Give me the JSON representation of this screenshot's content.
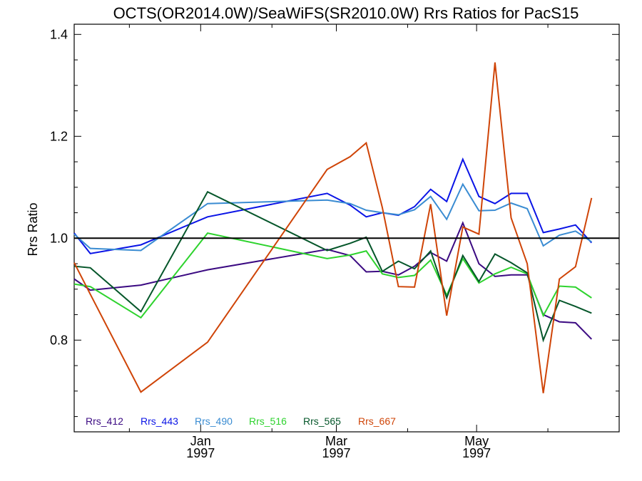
{
  "chart_data": {
    "type": "line",
    "title": "OCTS(OR2014.0W)/SeaWiFS(SR2010.0W)  Rrs Ratios for PacS15",
    "ylabel": "Rrs Ratio",
    "xlabel": "",
    "ylim": [
      0.62,
      1.42
    ],
    "xlim": [
      "1996-11-07",
      "1997-07-02"
    ],
    "reference_line": 1.0,
    "yticks": [
      "0.8",
      "1.0",
      "1.2",
      "1.4"
    ],
    "xticks": [
      {
        "x": "1997-01-01",
        "month": "Jan",
        "year": "1997"
      },
      {
        "x": "1997-03-01",
        "month": "Mar",
        "year": "1997"
      },
      {
        "x": "1997-05-01",
        "month": "May",
        "year": "1997"
      }
    ],
    "grid": false,
    "legend_position": "bottom-left",
    "x": [
      "1996-11-07",
      "1996-11-14",
      "1996-12-06",
      "1997-01-04",
      "1997-02-25",
      "1997-03-07",
      "1997-03-14",
      "1997-03-21",
      "1997-03-28",
      "1997-04-04",
      "1997-04-11",
      "1997-04-18",
      "1997-04-25",
      "1997-05-02",
      "1997-05-09",
      "1997-05-16",
      "1997-05-23",
      "1997-05-30",
      "1997-06-06",
      "1997-06-13",
      "1997-06-20",
      "1997-06-27",
      "1997-07-02"
    ],
    "series": [
      {
        "name": "Rrs_412",
        "color": "#3b0a82",
        "values": [
          0.92,
          0.898,
          0.908,
          0.938,
          0.978,
          0.966,
          0.934,
          0.935,
          0.928,
          0.945,
          0.972,
          0.955,
          1.03,
          0.95,
          0.925,
          0.928,
          0.928,
          0.85,
          0.836,
          0.834,
          0.802,
          null,
          null
        ]
      },
      {
        "name": "Rrs_443",
        "color": "#0a14e6",
        "values": [
          1.01,
          0.97,
          0.987,
          1.042,
          1.088,
          1.065,
          1.042,
          1.05,
          1.045,
          1.062,
          1.096,
          1.072,
          1.155,
          1.082,
          1.068,
          1.088,
          1.088,
          1.011,
          1.018,
          1.026,
          0.991,
          null,
          null
        ]
      },
      {
        "name": "Rrs_490",
        "color": "#3a8cd2",
        "values": [
          1.008,
          0.98,
          0.976,
          1.068,
          1.075,
          1.068,
          1.055,
          1.05,
          1.046,
          1.056,
          1.082,
          1.037,
          1.106,
          1.054,
          1.055,
          1.069,
          1.058,
          0.985,
          1.006,
          1.014,
          0.993,
          null,
          null
        ]
      },
      {
        "name": "Rrs_516",
        "color": "#2ed32e",
        "values": [
          0.91,
          0.905,
          0.844,
          1.01,
          0.96,
          0.967,
          0.975,
          0.93,
          0.923,
          0.927,
          0.957,
          0.888,
          0.96,
          0.912,
          0.93,
          0.943,
          0.93,
          0.848,
          0.906,
          0.904,
          0.883,
          null,
          null
        ]
      },
      {
        "name": "Rrs_565",
        "color": "#05562a",
        "values": [
          0.945,
          0.942,
          0.856,
          1.091,
          0.976,
          0.99,
          1.002,
          0.935,
          0.955,
          0.94,
          0.975,
          0.883,
          0.966,
          0.915,
          0.969,
          0.952,
          0.932,
          0.8,
          0.878,
          0.866,
          0.853,
          null,
          null
        ]
      },
      {
        "name": "Rrs_667",
        "color": "#cf4407",
        "values": [
          0.952,
          0.89,
          0.698,
          0.796,
          1.135,
          1.16,
          1.187,
          1.06,
          0.905,
          0.904,
          1.067,
          0.848,
          1.022,
          1.008,
          1.345,
          1.04,
          0.95,
          0.696,
          0.92,
          0.944,
          1.079,
          null,
          null
        ]
      }
    ]
  }
}
